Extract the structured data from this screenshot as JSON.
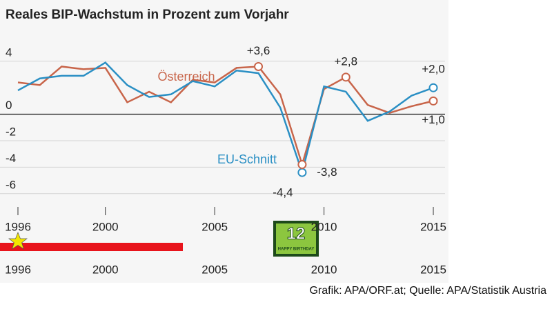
{
  "chart_data": {
    "type": "line",
    "title": "Reales BIP-Wachstum in Prozent zum Vorjahr",
    "x": [
      1996,
      1997,
      1998,
      1999,
      2000,
      2001,
      2002,
      2003,
      2004,
      2005,
      2006,
      2007,
      2008,
      2009,
      2010,
      2011,
      2012,
      2013,
      2014,
      2015
    ],
    "series": [
      {
        "name": "Österreich",
        "color": "#c8654a",
        "values": [
          2.4,
          2.2,
          3.6,
          3.4,
          3.5,
          0.9,
          1.7,
          0.9,
          2.6,
          2.4,
          3.5,
          3.6,
          1.5,
          -3.8,
          1.9,
          2.8,
          0.7,
          0.1,
          0.6,
          1.0
        ]
      },
      {
        "name": "EU-Schnitt",
        "color": "#2a8fc4",
        "values": [
          1.8,
          2.7,
          2.9,
          2.9,
          3.9,
          2.2,
          1.3,
          1.5,
          2.5,
          2.1,
          3.3,
          3.1,
          0.5,
          -4.4,
          2.1,
          1.7,
          -0.5,
          0.2,
          1.4,
          2.0
        ]
      }
    ],
    "annotations": [
      {
        "text": "+3,6",
        "x": 2007,
        "y": 3.6
      },
      {
        "text": "+2,8",
        "x": 2011,
        "y": 2.8
      },
      {
        "text": "+2,0",
        "x": 2015,
        "y": 2.0
      },
      {
        "text": "+1,0",
        "x": 2015,
        "y": 1.0
      },
      {
        "text": "-4,4",
        "x": 2009,
        "y": -4.4
      },
      {
        "text": "-3,8",
        "x": 2009,
        "y": -3.8
      }
    ],
    "xlim": [
      1996,
      2015
    ],
    "xticks": [
      1996,
      2000,
      2005,
      2010,
      2015
    ],
    "ylim": [
      -7,
      5.5
    ],
    "yticks": [
      -6,
      -4,
      -2,
      0,
      4
    ],
    "grid": true,
    "timeline": {
      "ticks": [
        1996,
        2000,
        2005,
        2010,
        2015
      ],
      "badge": "12",
      "badge_text": "HAPPY BIRTHDAY"
    },
    "source": "Grafik: APA/ORF.at; Quelle: APA/Statistik Austria"
  }
}
